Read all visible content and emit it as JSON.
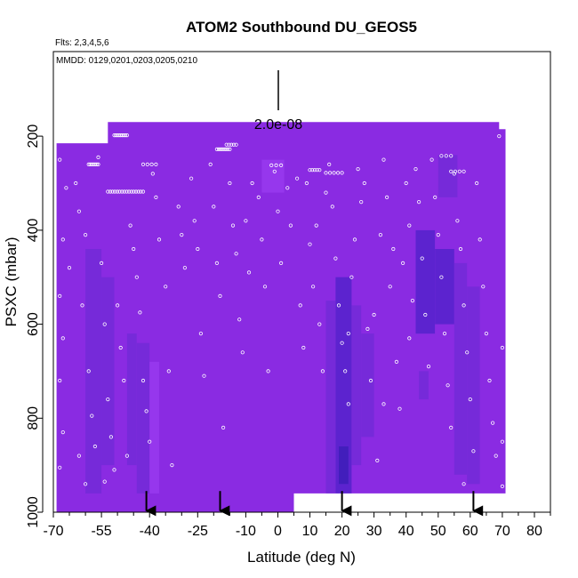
{
  "chart_data": {
    "type": "heatmap",
    "title": "ATOM2 Southbound DU_GEOS5",
    "flights_label": "Flts: 2,3,4,5,6",
    "dates_label": "MMDD: 0129,0201,0203,0205,0210",
    "scale_label": "2.0e-08",
    "xlabel": "Latitude (deg N)",
    "ylabel": "PSXC (mbar)",
    "xlim": [
      -70,
      85
    ],
    "ylim": [
      1000,
      20
    ],
    "x_reversed": false,
    "y_reversed": true,
    "x_ticks": [
      -70,
      -55,
      -40,
      -25,
      -10,
      0,
      10,
      20,
      30,
      40,
      50,
      60,
      70,
      80
    ],
    "x_minor_ticks": [
      -65,
      -60,
      -50,
      -45,
      -35,
      -30,
      -20,
      -15,
      -5,
      5,
      15,
      25,
      35,
      45,
      55,
      65,
      75,
      85
    ],
    "y_ticks": [
      200,
      400,
      600,
      800,
      1000
    ],
    "grid": false,
    "colors": {
      "field_base": "#8a2be2",
      "field_light": "#9a3cf0",
      "field_mid": "#6f2bd6",
      "field_dark": "#4c22c8",
      "field_darkest": "#3a1db5",
      "sample_marker": "#ffffff",
      "axis": "#000000"
    },
    "field_outline": [
      [
        -69,
        960
      ],
      [
        -69,
        215
      ],
      [
        -53,
        215
      ],
      [
        -53,
        170
      ],
      [
        69,
        170
      ],
      [
        69,
        185
      ],
      [
        71,
        185
      ],
      [
        71,
        960
      ],
      [
        5,
        960
      ],
      [
        5,
        1000
      ],
      [
        -69,
        1000
      ]
    ],
    "field_cells": [
      {
        "lat": [
          -60,
          -55
        ],
        "p": [
          440,
          960
        ],
        "shade": "mid"
      },
      {
        "lat": [
          -55,
          -51
        ],
        "p": [
          500,
          900
        ],
        "shade": "mid"
      },
      {
        "lat": [
          -47,
          -44
        ],
        "p": [
          620,
          900
        ],
        "shade": "mid"
      },
      {
        "lat": [
          -44,
          -40
        ],
        "p": [
          640,
          960
        ],
        "shade": "mid"
      },
      {
        "lat": [
          -40,
          -37
        ],
        "p": [
          680,
          960
        ],
        "shade": "light"
      },
      {
        "lat": [
          -5,
          2
        ],
        "p": [
          250,
          320
        ],
        "shade": "light"
      },
      {
        "lat": [
          15,
          18
        ],
        "p": [
          550,
          960
        ],
        "shade": "mid"
      },
      {
        "lat": [
          18,
          23
        ],
        "p": [
          500,
          960
        ],
        "shade": "dark"
      },
      {
        "lat": [
          19,
          22
        ],
        "p": [
          860,
          940
        ],
        "shade": "darkest"
      },
      {
        "lat": [
          23,
          26
        ],
        "p": [
          560,
          900
        ],
        "shade": "mid"
      },
      {
        "lat": [
          26,
          30
        ],
        "p": [
          620,
          840
        ],
        "shade": "mid"
      },
      {
        "lat": [
          43,
          49
        ],
        "p": [
          400,
          620
        ],
        "shade": "dark"
      },
      {
        "lat": [
          49,
          55
        ],
        "p": [
          440,
          600
        ],
        "shade": "dark"
      },
      {
        "lat": [
          55,
          59
        ],
        "p": [
          470,
          920
        ],
        "shade": "mid"
      },
      {
        "lat": [
          59,
          63
        ],
        "p": [
          520,
          940
        ],
        "shade": "mid"
      },
      {
        "lat": [
          44,
          47
        ],
        "p": [
          700,
          760
        ],
        "shade": "mid"
      },
      {
        "lat": [
          50,
          56
        ],
        "p": [
          240,
          330
        ],
        "shade": "mid"
      }
    ],
    "samples": [
      {
        "lat": [
          -59,
          -56
        ],
        "p": 260,
        "n": 7
      },
      {
        "lat": [
          -51,
          -47
        ],
        "p": 198,
        "n": 9
      },
      {
        "lat": [
          -53,
          -42
        ],
        "p": 318,
        "n": 16
      },
      {
        "lat": [
          -42,
          -38
        ],
        "p": 260,
        "n": 4
      },
      {
        "lat": [
          -19,
          -15
        ],
        "p": 228,
        "n": 8
      },
      {
        "lat": [
          -16,
          -13
        ],
        "p": 218,
        "n": 5
      },
      {
        "lat": [
          -2,
          1
        ],
        "p": 262,
        "n": 3
      },
      {
        "lat": [
          10,
          13
        ],
        "p": 272,
        "n": 5
      },
      {
        "lat": [
          15,
          20
        ],
        "p": 278,
        "n": 5
      },
      {
        "lat": [
          54,
          58
        ],
        "p": 275,
        "n": 4
      },
      {
        "lat": [
          51,
          54
        ],
        "p": 242,
        "n": 3
      }
    ],
    "scatter_points": [
      [
        -68,
        250
      ],
      [
        -67,
        420
      ],
      [
        -68,
        540
      ],
      [
        -67,
        630
      ],
      [
        -68,
        720
      ],
      [
        -67,
        830
      ],
      [
        -68,
        905
      ],
      [
        -66,
        310
      ],
      [
        -65,
        480
      ],
      [
        -63,
        300
      ],
      [
        -62,
        360
      ],
      [
        -60,
        410
      ],
      [
        -61,
        560
      ],
      [
        -62,
        880
      ],
      [
        -60,
        940
      ],
      [
        -59,
        700
      ],
      [
        -58,
        795
      ],
      [
        -57,
        860
      ],
      [
        -56,
        245
      ],
      [
        -55,
        470
      ],
      [
        -54,
        600
      ],
      [
        -53,
        760
      ],
      [
        -52,
        840
      ],
      [
        -51,
        910
      ],
      [
        -54,
        935
      ],
      [
        -50,
        560
      ],
      [
        -49,
        650
      ],
      [
        -48,
        720
      ],
      [
        -47,
        880
      ],
      [
        -46,
        390
      ],
      [
        -45,
        440
      ],
      [
        -44,
        500
      ],
      [
        -43,
        575
      ],
      [
        -42,
        720
      ],
      [
        -41,
        785
      ],
      [
        -40,
        850
      ],
      [
        -39,
        280
      ],
      [
        -38,
        330
      ],
      [
        -37,
        420
      ],
      [
        -35,
        520
      ],
      [
        -34,
        700
      ],
      [
        -33,
        900
      ],
      [
        -31,
        350
      ],
      [
        -30,
        410
      ],
      [
        -29,
        480
      ],
      [
        -27,
        290
      ],
      [
        -26,
        380
      ],
      [
        -25,
        440
      ],
      [
        -24,
        620
      ],
      [
        -23,
        710
      ],
      [
        -21,
        260
      ],
      [
        -20,
        350
      ],
      [
        -19,
        470
      ],
      [
        -18,
        540
      ],
      [
        -17,
        820
      ],
      [
        -15,
        300
      ],
      [
        -14,
        390
      ],
      [
        -13,
        450
      ],
      [
        -12,
        590
      ],
      [
        -11,
        660
      ],
      [
        -10,
        380
      ],
      [
        -9,
        490
      ],
      [
        -8,
        300
      ],
      [
        -6,
        330
      ],
      [
        -5,
        420
      ],
      [
        -4,
        520
      ],
      [
        -3,
        700
      ],
      [
        -1,
        275
      ],
      [
        0,
        360
      ],
      [
        1,
        470
      ],
      [
        3,
        310
      ],
      [
        4,
        390
      ],
      [
        6,
        290
      ],
      [
        7,
        560
      ],
      [
        8,
        650
      ],
      [
        9,
        300
      ],
      [
        10,
        430
      ],
      [
        11,
        520
      ],
      [
        12,
        390
      ],
      [
        13,
        600
      ],
      [
        14,
        700
      ],
      [
        15,
        320
      ],
      [
        16,
        260
      ],
      [
        17,
        350
      ],
      [
        18,
        460
      ],
      [
        19,
        560
      ],
      [
        20,
        640
      ],
      [
        21,
        700
      ],
      [
        22,
        770
      ],
      [
        22,
        620
      ],
      [
        23,
        500
      ],
      [
        24,
        420
      ],
      [
        25,
        270
      ],
      [
        26,
        340
      ],
      [
        27,
        300
      ],
      [
        28,
        610
      ],
      [
        29,
        720
      ],
      [
        30,
        580
      ],
      [
        31,
        890
      ],
      [
        32,
        410
      ],
      [
        33,
        250
      ],
      [
        34,
        330
      ],
      [
        35,
        520
      ],
      [
        36,
        440
      ],
      [
        37,
        680
      ],
      [
        38,
        780
      ],
      [
        39,
        470
      ],
      [
        40,
        300
      ],
      [
        41,
        390
      ],
      [
        42,
        550
      ],
      [
        43,
        270
      ],
      [
        44,
        340
      ],
      [
        45,
        460
      ],
      [
        46,
        580
      ],
      [
        47,
        690
      ],
      [
        48,
        250
      ],
      [
        49,
        330
      ],
      [
        50,
        410
      ],
      [
        51,
        500
      ],
      [
        52,
        620
      ],
      [
        53,
        730
      ],
      [
        54,
        820
      ],
      [
        55,
        280
      ],
      [
        56,
        380
      ],
      [
        57,
        440
      ],
      [
        58,
        560
      ],
      [
        59,
        660
      ],
      [
        60,
        760
      ],
      [
        61,
        870
      ],
      [
        62,
        300
      ],
      [
        63,
        420
      ],
      [
        64,
        520
      ],
      [
        65,
        620
      ],
      [
        66,
        720
      ],
      [
        67,
        810
      ],
      [
        68,
        880
      ],
      [
        69,
        200
      ],
      [
        70,
        650
      ],
      [
        70,
        850
      ],
      [
        70,
        945
      ],
      [
        58,
        940
      ],
      [
        41,
        630
      ],
      [
        33,
        770
      ]
    ],
    "annotation_arrows_lat": [
      -41,
      -18,
      20,
      61
    ]
  }
}
